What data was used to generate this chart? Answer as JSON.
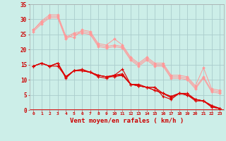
{
  "background_color": "#cceee8",
  "grid_color": "#aacccc",
  "xlabel": "Vent moyen/en rafales ( km/h )",
  "xlabel_color": "#cc0000",
  "tick_color": "#cc0000",
  "xlim": [
    -0.5,
    23.5
  ],
  "ylim": [
    0,
    35
  ],
  "yticks": [
    0,
    5,
    10,
    15,
    20,
    25,
    30,
    35
  ],
  "xticks": [
    0,
    1,
    2,
    3,
    4,
    5,
    6,
    7,
    8,
    9,
    10,
    11,
    12,
    13,
    14,
    15,
    16,
    17,
    18,
    19,
    20,
    21,
    22,
    23
  ],
  "light_pink": "#ff9999",
  "dark_red": "#dd0000",
  "lines_light": [
    [
      26.5,
      29.5,
      31.5,
      31.5,
      24.5,
      24.0,
      26.5,
      26.0,
      22.0,
      21.5,
      23.5,
      21.5,
      17.5,
      15.5,
      17.5,
      15.5,
      15.5,
      11.5,
      11.5,
      11.0,
      8.0,
      14.0,
      7.0,
      6.5
    ],
    [
      26.5,
      29.0,
      31.0,
      31.0,
      24.0,
      25.5,
      26.0,
      25.5,
      21.5,
      21.0,
      21.5,
      21.0,
      17.0,
      15.0,
      17.0,
      15.0,
      15.0,
      11.0,
      11.0,
      10.5,
      7.5,
      11.0,
      6.5,
      6.0
    ],
    [
      26.0,
      28.5,
      30.5,
      30.5,
      23.5,
      25.0,
      25.5,
      25.0,
      21.0,
      20.5,
      21.0,
      20.5,
      16.5,
      14.5,
      16.5,
      14.5,
      14.5,
      10.5,
      10.5,
      10.0,
      7.0,
      10.5,
      6.0,
      5.5
    ]
  ],
  "lines_dark": [
    [
      14.5,
      15.5,
      14.5,
      14.5,
      11.0,
      13.0,
      13.5,
      12.5,
      11.5,
      11.0,
      11.5,
      13.5,
      8.5,
      8.0,
      7.5,
      7.5,
      4.5,
      3.5,
      5.5,
      5.5,
      3.5,
      3.0,
      1.0,
      0.5
    ],
    [
      14.5,
      15.5,
      14.5,
      15.5,
      10.5,
      13.0,
      13.0,
      12.5,
      11.0,
      10.5,
      11.5,
      12.0,
      8.5,
      8.0,
      7.5,
      7.5,
      5.5,
      4.5,
      5.5,
      5.0,
      3.5,
      3.0,
      1.0,
      0.5
    ],
    [
      14.5,
      15.5,
      14.5,
      15.5,
      11.0,
      13.0,
      13.0,
      12.5,
      11.5,
      11.0,
      11.5,
      11.5,
      8.5,
      8.5,
      7.5,
      6.5,
      5.5,
      4.5,
      5.5,
      5.0,
      3.5,
      3.0,
      1.5,
      0.5
    ],
    [
      14.5,
      15.5,
      14.5,
      15.5,
      11.0,
      13.0,
      13.0,
      12.5,
      11.5,
      11.0,
      11.0,
      11.5,
      8.5,
      8.0,
      7.5,
      6.5,
      5.5,
      4.0,
      5.5,
      5.0,
      3.0,
      3.0,
      1.5,
      0.5
    ]
  ],
  "bottom_line_y": 0.3
}
